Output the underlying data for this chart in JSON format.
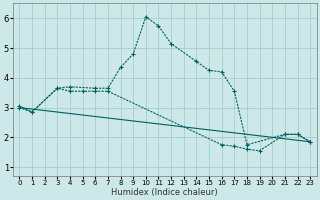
{
  "xlabel": "Humidex (Indice chaleur)",
  "bg_color": "#cce8e8",
  "line_color": "#006060",
  "grid_color": "#aacccc",
  "xlim": [
    -0.5,
    23.5
  ],
  "ylim": [
    0.7,
    6.5
  ],
  "xticks": [
    0,
    1,
    2,
    3,
    4,
    5,
    6,
    7,
    8,
    9,
    10,
    11,
    12,
    13,
    14,
    15,
    16,
    17,
    18,
    19,
    20,
    21,
    22,
    23
  ],
  "yticks": [
    1,
    2,
    3,
    4,
    5,
    6
  ],
  "curve1_x": [
    0,
    1,
    3,
    4,
    6,
    7,
    8,
    9,
    10,
    11,
    12,
    14,
    15,
    16,
    17,
    18,
    21,
    22,
    23
  ],
  "curve1_y": [
    3.0,
    2.85,
    3.65,
    3.7,
    3.65,
    3.65,
    4.35,
    4.8,
    6.05,
    5.75,
    5.15,
    4.55,
    4.25,
    4.2,
    3.55,
    1.75,
    2.1,
    2.1,
    1.85
  ],
  "curve2_x": [
    0,
    1,
    3,
    4,
    5,
    6,
    7,
    16,
    17,
    18,
    19,
    21,
    22,
    23
  ],
  "curve2_y": [
    3.05,
    2.85,
    3.65,
    3.55,
    3.55,
    3.55,
    3.55,
    1.75,
    1.7,
    1.6,
    1.55,
    2.1,
    2.1,
    1.85
  ],
  "line3_x": [
    0,
    23
  ],
  "line3_y": [
    3.0,
    1.85
  ]
}
